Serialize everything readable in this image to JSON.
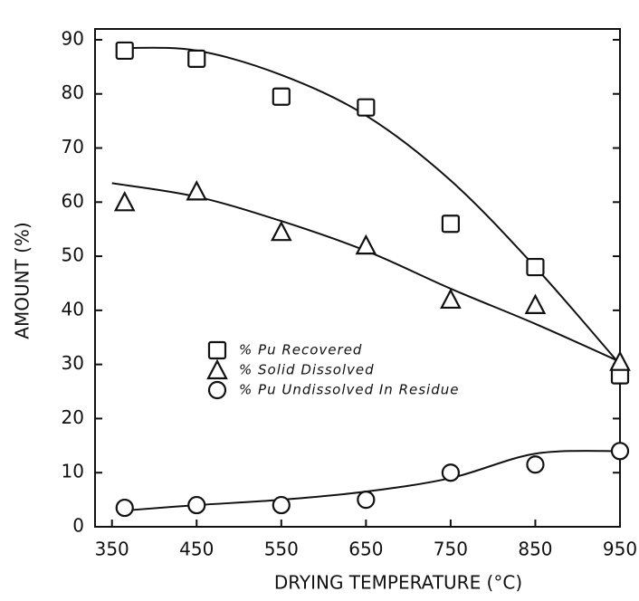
{
  "chart_data": {
    "type": "scatter",
    "xlabel": "DRYING TEMPERATURE (°C)",
    "ylabel": "AMOUNT (%)",
    "x": [
      365,
      450,
      550,
      650,
      750,
      850,
      950
    ],
    "series": [
      {
        "name": "% Pu Recovered",
        "marker": "square",
        "color": "#111111",
        "values": [
          88,
          86.5,
          79.5,
          77.5,
          56,
          48,
          28
        ]
      },
      {
        "name": "% Solid Dissolved",
        "marker": "triangle",
        "color": "#111111",
        "values": [
          60,
          62,
          54.5,
          52,
          42,
          41,
          30.5
        ]
      },
      {
        "name": "% Pu Undissolved In Residue",
        "marker": "circle",
        "color": "#111111",
        "values": [
          3.5,
          4,
          4,
          5,
          10,
          11.5,
          14
        ]
      }
    ],
    "curves": [
      {
        "x": [
          365,
          450,
          550,
          650,
          750,
          850,
          950
        ],
        "values": [
          88.5,
          88,
          83.5,
          76,
          64,
          48,
          30
        ]
      },
      {
        "x": [
          350,
          450,
          550,
          650,
          750,
          850,
          950
        ],
        "values": [
          63.5,
          61,
          56.5,
          51,
          44,
          37.5,
          30.5
        ]
      },
      {
        "x": [
          365,
          450,
          550,
          650,
          750,
          850,
          950
        ],
        "values": [
          3,
          4,
          5,
          6.5,
          9,
          13.5,
          14
        ]
      }
    ],
    "xlim": [
      330,
      950
    ],
    "xticks": [
      350,
      450,
      550,
      650,
      750,
      850,
      950
    ],
    "ylim": [
      0,
      92
    ],
    "yticks": [
      0,
      10,
      20,
      30,
      40,
      50,
      60,
      70,
      80,
      90
    ],
    "grid": false
  }
}
